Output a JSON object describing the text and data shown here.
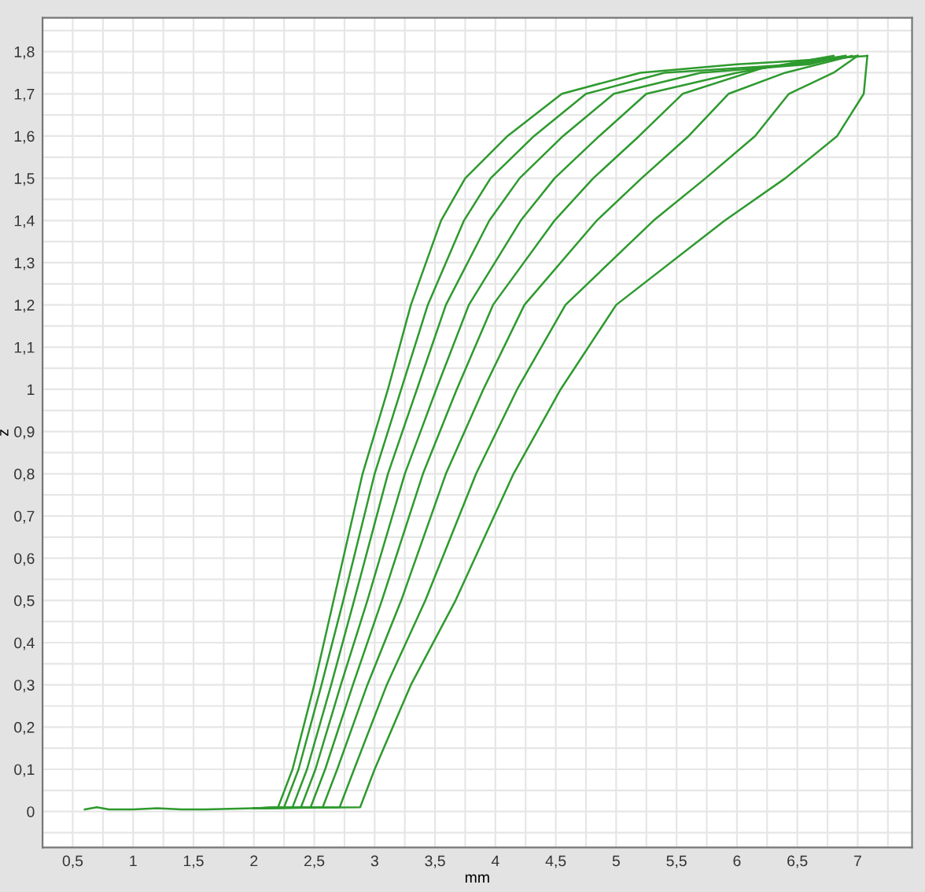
{
  "chart_data": {
    "type": "line",
    "xlabel": "mm",
    "ylabel": "z",
    "xlim": [
      0.25,
      7.45
    ],
    "ylim": [
      -0.085,
      1.88
    ],
    "grid": true,
    "marker": "none",
    "line_style": "solid",
    "xticks": [
      {
        "value": 0.25,
        "label": null
      },
      {
        "value": 0.5,
        "label": "0,5"
      },
      {
        "value": 0.75,
        "label": null
      },
      1,
      {
        "value": 1.25,
        "label": null
      },
      {
        "value": 1.5,
        "label": "1,5"
      },
      {
        "value": 1.75,
        "label": null
      },
      2,
      {
        "value": 2.25,
        "label": null
      },
      {
        "value": 2.5,
        "label": "2,5"
      },
      {
        "value": 2.75,
        "label": null
      },
      3,
      {
        "value": 3.25,
        "label": null
      },
      {
        "value": 3.5,
        "label": "3,5"
      },
      {
        "value": 3.75,
        "label": null
      },
      4,
      {
        "value": 4.25,
        "label": null
      },
      {
        "value": 4.5,
        "label": "4,5"
      },
      {
        "value": 4.75,
        "label": null
      },
      5,
      {
        "value": 5.25,
        "label": null
      },
      {
        "value": 5.5,
        "label": "5,5"
      },
      {
        "value": 5.75,
        "label": null
      },
      6,
      {
        "value": 6.25,
        "label": null
      },
      {
        "value": 6.5,
        "label": "6,5"
      },
      {
        "value": 6.75,
        "label": null
      },
      7,
      {
        "value": 7.25,
        "label": null
      }
    ],
    "yticks": [
      {
        "value": -0.05,
        "label": null
      },
      0,
      {
        "value": 0.05,
        "label": null
      },
      {
        "value": 0.1,
        "label": "0,1"
      },
      {
        "value": 0.15,
        "label": null
      },
      {
        "value": 0.2,
        "label": "0,2"
      },
      {
        "value": 0.25,
        "label": null
      },
      {
        "value": 0.3,
        "label": "0,3"
      },
      {
        "value": 0.35,
        "label": null
      },
      {
        "value": 0.4,
        "label": "0,4"
      },
      {
        "value": 0.45,
        "label": null
      },
      {
        "value": 0.5,
        "label": "0,5"
      },
      {
        "value": 0.55,
        "label": null
      },
      {
        "value": 0.6,
        "label": "0,6"
      },
      {
        "value": 0.65,
        "label": null
      },
      {
        "value": 0.7,
        "label": "0,7"
      },
      {
        "value": 0.75,
        "label": null
      },
      {
        "value": 0.8,
        "label": "0,8"
      },
      {
        "value": 0.85,
        "label": null
      },
      {
        "value": 0.9,
        "label": "0,9"
      },
      {
        "value": 0.95,
        "label": null
      },
      1,
      {
        "value": 1.05,
        "label": null
      },
      {
        "value": 1.1,
        "label": "1,1"
      },
      {
        "value": 1.15,
        "label": null
      },
      {
        "value": 1.2,
        "label": "1,2"
      },
      {
        "value": 1.25,
        "label": null
      },
      {
        "value": 1.3,
        "label": "1,3"
      },
      {
        "value": 1.35,
        "label": null
      },
      {
        "value": 1.4,
        "label": "1,4"
      },
      {
        "value": 1.45,
        "label": null
      },
      {
        "value": 1.5,
        "label": "1,5"
      },
      {
        "value": 1.55,
        "label": null
      },
      {
        "value": 1.6,
        "label": "1,6"
      },
      {
        "value": 1.65,
        "label": null
      },
      {
        "value": 1.7,
        "label": "1,7"
      },
      {
        "value": 1.75,
        "label": null
      },
      {
        "value": 1.8,
        "label": "1,8"
      },
      {
        "value": 1.85,
        "label": null
      }
    ],
    "series": [
      {
        "color": "#2e9a2e",
        "x": [
          0.6,
          0.7,
          0.8,
          1.0,
          1.2,
          1.4,
          1.6,
          2.0,
          2.2,
          2.32,
          2.5,
          2.66,
          2.9,
          3.11,
          3.3,
          3.55,
          3.75,
          4.1,
          4.55,
          5.2,
          6.0,
          6.6,
          7.08
        ],
        "values": [
          0.005,
          0.01,
          0.005,
          0.005,
          0.008,
          0.005,
          0.005,
          0.008,
          0.01,
          0.1,
          0.3,
          0.5,
          0.8,
          1.0,
          1.2,
          1.4,
          1.5,
          1.6,
          1.7,
          1.75,
          1.77,
          1.78,
          1.79
        ]
      },
      {
        "color": "#2e9a2e",
        "x": [
          2.0,
          2.25,
          2.37,
          2.56,
          2.74,
          3.0,
          3.22,
          3.44,
          3.74,
          3.96,
          4.32,
          4.75,
          5.4,
          6.5,
          7.0
        ],
        "values": [
          0.008,
          0.01,
          0.1,
          0.3,
          0.5,
          0.8,
          1.0,
          1.2,
          1.4,
          1.5,
          1.6,
          1.7,
          1.75,
          1.77,
          1.79
        ]
      },
      {
        "color": "#2e9a2e",
        "x": [
          2.0,
          2.32,
          2.44,
          2.64,
          2.83,
          3.11,
          3.35,
          3.59,
          3.95,
          4.2,
          4.56,
          4.98,
          5.7,
          6.6,
          6.9
        ],
        "values": [
          0.008,
          0.01,
          0.1,
          0.3,
          0.5,
          0.8,
          1.0,
          1.2,
          1.4,
          1.5,
          1.6,
          1.7,
          1.75,
          1.77,
          1.79
        ]
      },
      {
        "color": "#2e9a2e",
        "x": [
          2.0,
          2.39,
          2.51,
          2.72,
          2.94,
          3.25,
          3.51,
          3.78,
          4.21,
          4.49,
          4.86,
          5.25,
          6.0,
          6.8
        ],
        "values": [
          0.008,
          0.01,
          0.1,
          0.3,
          0.5,
          0.8,
          1.0,
          1.2,
          1.4,
          1.5,
          1.6,
          1.7,
          1.75,
          1.79
        ]
      },
      {
        "color": "#2e9a2e",
        "x": [
          2.0,
          2.47,
          2.59,
          2.82,
          3.06,
          3.4,
          3.68,
          3.98,
          4.49,
          4.81,
          5.19,
          5.55,
          6.2,
          6.9
        ],
        "values": [
          0.008,
          0.01,
          0.1,
          0.3,
          0.5,
          0.8,
          1.0,
          1.2,
          1.4,
          1.5,
          1.6,
          1.7,
          1.76,
          1.79
        ]
      },
      {
        "color": "#2e9a2e",
        "x": [
          2.0,
          2.57,
          2.69,
          2.94,
          3.22,
          3.59,
          3.9,
          4.24,
          4.84,
          5.21,
          5.6,
          5.93,
          6.4,
          6.95
        ],
        "values": [
          0.008,
          0.01,
          0.1,
          0.3,
          0.5,
          0.8,
          1.0,
          1.2,
          1.4,
          1.5,
          1.6,
          1.7,
          1.75,
          1.79
        ]
      },
      {
        "color": "#2e9a2e",
        "x": [
          2.0,
          2.71,
          2.83,
          3.1,
          3.42,
          3.84,
          4.18,
          4.58,
          5.31,
          5.74,
          6.15,
          6.43,
          6.8,
          7.0
        ],
        "values": [
          0.008,
          0.01,
          0.1,
          0.3,
          0.5,
          0.8,
          1.0,
          1.2,
          1.4,
          1.5,
          1.6,
          1.7,
          1.75,
          1.79
        ]
      },
      {
        "color": "#2e9a2e",
        "x": [
          2.0,
          2.88,
          3.0,
          3.3,
          3.67,
          4.15,
          4.54,
          5.0,
          5.9,
          6.4,
          6.83,
          7.05,
          7.08
        ],
        "values": [
          0.008,
          0.01,
          0.1,
          0.3,
          0.5,
          0.8,
          1.0,
          1.2,
          1.4,
          1.5,
          1.6,
          1.7,
          1.79
        ]
      }
    ]
  }
}
